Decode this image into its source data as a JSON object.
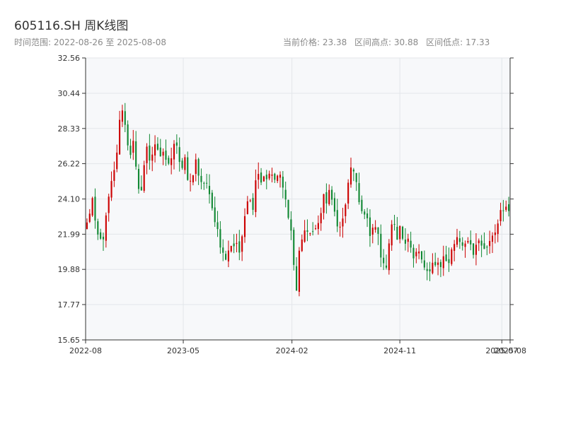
{
  "header": {
    "title": "605116.SH 周K线图",
    "range_text": "时间范围: 2022-08-26 至 2025-08-08",
    "current_price_text": "当前价格: 23.38",
    "high_text": "区间高点: 30.88",
    "low_text": "区间低点: 17.33"
  },
  "colors": {
    "up": "#cc0000",
    "down": "#118833",
    "plot_bg": "#f7f8fa",
    "grid": "#e3e6ea",
    "axis": "#333333"
  },
  "chart_data": {
    "type": "candlestick",
    "title": "605116.SH 周K线图",
    "start_date": "2022-08-26",
    "end_date": "2025-08-08",
    "ylim": [
      15.65,
      32.56
    ],
    "y_ticks": [
      15.65,
      17.77,
      19.88,
      21.99,
      24.1,
      26.22,
      28.33,
      30.44,
      32.56
    ],
    "y_tick_labels": [
      "15.65",
      "17.77",
      "19.88",
      "21.99",
      "24.10",
      "26.22",
      "28.33",
      "30.44",
      "32.56"
    ],
    "x_ticks": [
      {
        "label": "2022-08",
        "date": "2022-08-26"
      },
      {
        "label": "2023-05",
        "date": "2023-05-01"
      },
      {
        "label": "2024-02",
        "date": "2024-02-01"
      },
      {
        "label": "2024-11",
        "date": "2024-11-01"
      },
      {
        "label": "2025-07",
        "date": "2025-07-18"
      },
      {
        "label": "2025-08",
        "date": "2025-08-08"
      }
    ],
    "grid": true,
    "close_series": [
      22.6,
      23.4,
      24.2,
      22.0,
      21.8,
      21.5,
      22.2,
      23.7,
      24.8,
      25.4,
      26.7,
      28.6,
      29.6,
      28.4,
      27.3,
      26.8,
      27.7,
      24.6,
      24.4,
      25.4,
      27.4,
      26.4,
      26.8,
      27.5,
      26.8,
      26.4,
      27.1,
      26.3,
      25.9,
      27.3,
      27.9,
      26.8,
      25.7,
      26.6,
      25.3,
      25.0,
      25.7,
      26.6,
      25.0,
      24.9,
      25.3,
      24.8,
      23.6,
      23.2,
      22.5,
      21.6,
      20.8,
      20.5,
      20.9,
      21.5,
      21.3,
      21.6,
      20.6,
      22.3,
      23.9,
      24.7,
      23.2,
      24.9,
      26.0,
      25.2,
      25.6,
      25.3,
      25.9,
      25.2,
      25.3,
      25.6,
      25.1,
      24.2,
      23.5,
      22.6,
      20.4,
      18.5,
      21.0,
      21.9,
      22.3,
      21.7,
      22.5,
      21.9,
      22.3,
      23.0,
      24.6,
      23.5,
      24.8,
      23.9,
      23.2,
      22.5,
      22.2,
      22.8,
      24.3,
      26.0,
      25.9,
      25.3,
      24.1,
      23.2,
      23.5,
      22.7,
      22.1,
      22.6,
      22.4,
      21.6,
      20.2,
      19.9,
      20.4,
      22.5,
      22.9,
      21.8,
      22.7,
      21.6,
      21.2,
      21.6,
      20.7,
      20.4,
      20.9,
      21.2,
      20.3,
      19.9,
      19.5,
      20.2,
      20.0,
      20.3,
      19.9,
      20.5,
      20.2,
      20.6,
      21.3,
      21.8,
      21.6,
      21.5,
      21.2,
      21.7,
      21.5,
      20.9,
      21.5,
      21.9,
      21.1,
      20.7,
      21.3,
      21.8,
      21.6,
      22.4,
      23.5,
      23.3,
      23.9,
      23.38
    ]
  }
}
